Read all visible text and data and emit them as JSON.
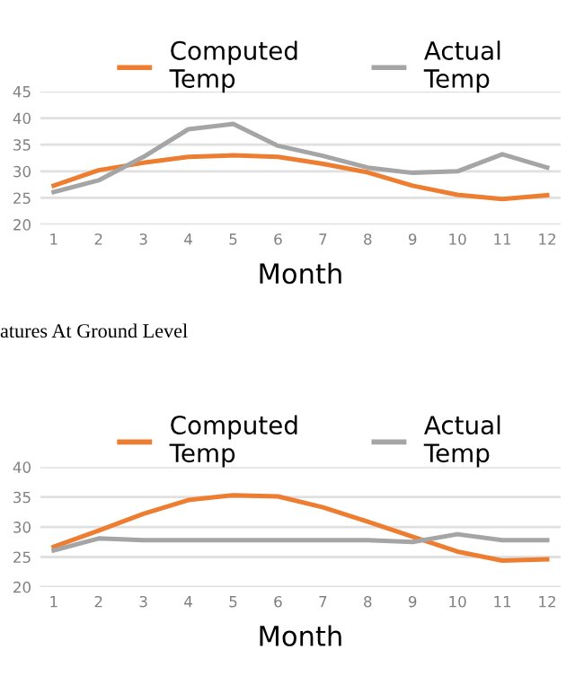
{
  "chart_data": [
    {
      "type": "line",
      "xlabel": "Month",
      "categories": [
        "1",
        "2",
        "3",
        "4",
        "5",
        "6",
        "7",
        "8",
        "9",
        "10",
        "11",
        "12"
      ],
      "series": [
        {
          "name": "Computed Temp",
          "color": "#ed7d31",
          "values": [
            27.3,
            30.2,
            31.6,
            32.7,
            33.0,
            32.7,
            31.4,
            29.8,
            27.3,
            25.6,
            24.8,
            25.5
          ]
        },
        {
          "name": "Actual Temp",
          "color": "#a5a5a5",
          "values": [
            26.1,
            28.3,
            32.7,
            37.9,
            38.9,
            34.8,
            32.9,
            30.7,
            29.7,
            30.0,
            33.2,
            30.7
          ]
        }
      ],
      "ylim": [
        20,
        45
      ],
      "yticks": [
        20,
        25,
        30,
        35,
        40,
        45
      ],
      "grid": "y",
      "legend": "top",
      "annotations": [
        "atures At Ground Level"
      ]
    },
    {
      "type": "line",
      "xlabel": "Month",
      "categories": [
        "1",
        "2",
        "3",
        "4",
        "5",
        "6",
        "7",
        "8",
        "9",
        "10",
        "11",
        "12"
      ],
      "series": [
        {
          "name": "Computed Temp",
          "color": "#ed7d31",
          "values": [
            26.7,
            29.4,
            32.2,
            34.5,
            35.3,
            35.1,
            33.3,
            30.9,
            28.4,
            25.9,
            24.4,
            24.6
          ]
        },
        {
          "name": "Actual Temp",
          "color": "#a5a5a5",
          "values": [
            26.1,
            28.1,
            27.8,
            27.8,
            27.8,
            27.8,
            27.8,
            27.8,
            27.5,
            28.8,
            27.8,
            27.8
          ]
        }
      ],
      "ylim": [
        20,
        40
      ],
      "yticks": [
        20,
        25,
        30,
        35,
        40
      ],
      "grid": "y",
      "legend": "top"
    }
  ]
}
